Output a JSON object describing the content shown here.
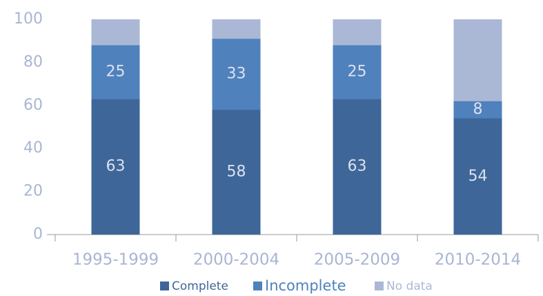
{
  "chart_data": {
    "type": "stacked_bar",
    "categories": [
      "1995-1999",
      "2000-2004",
      "2005-2009",
      "2010-2014"
    ],
    "series": [
      {
        "name": "Complete",
        "color": "#3e6699",
        "values": [
          63,
          58,
          63,
          54
        ],
        "show_labels": true
      },
      {
        "name": "Incomplete",
        "color": "#4f81bd",
        "values": [
          25,
          33,
          25,
          8
        ],
        "show_labels": true
      },
      {
        "name": "No data",
        "color": "#aab8d6",
        "values": [
          12,
          9,
          12,
          38
        ],
        "show_labels": false
      }
    ],
    "ylim": [
      0,
      100
    ],
    "yticks": [
      0,
      20,
      40,
      60,
      80,
      100
    ],
    "legend": "bottom"
  }
}
